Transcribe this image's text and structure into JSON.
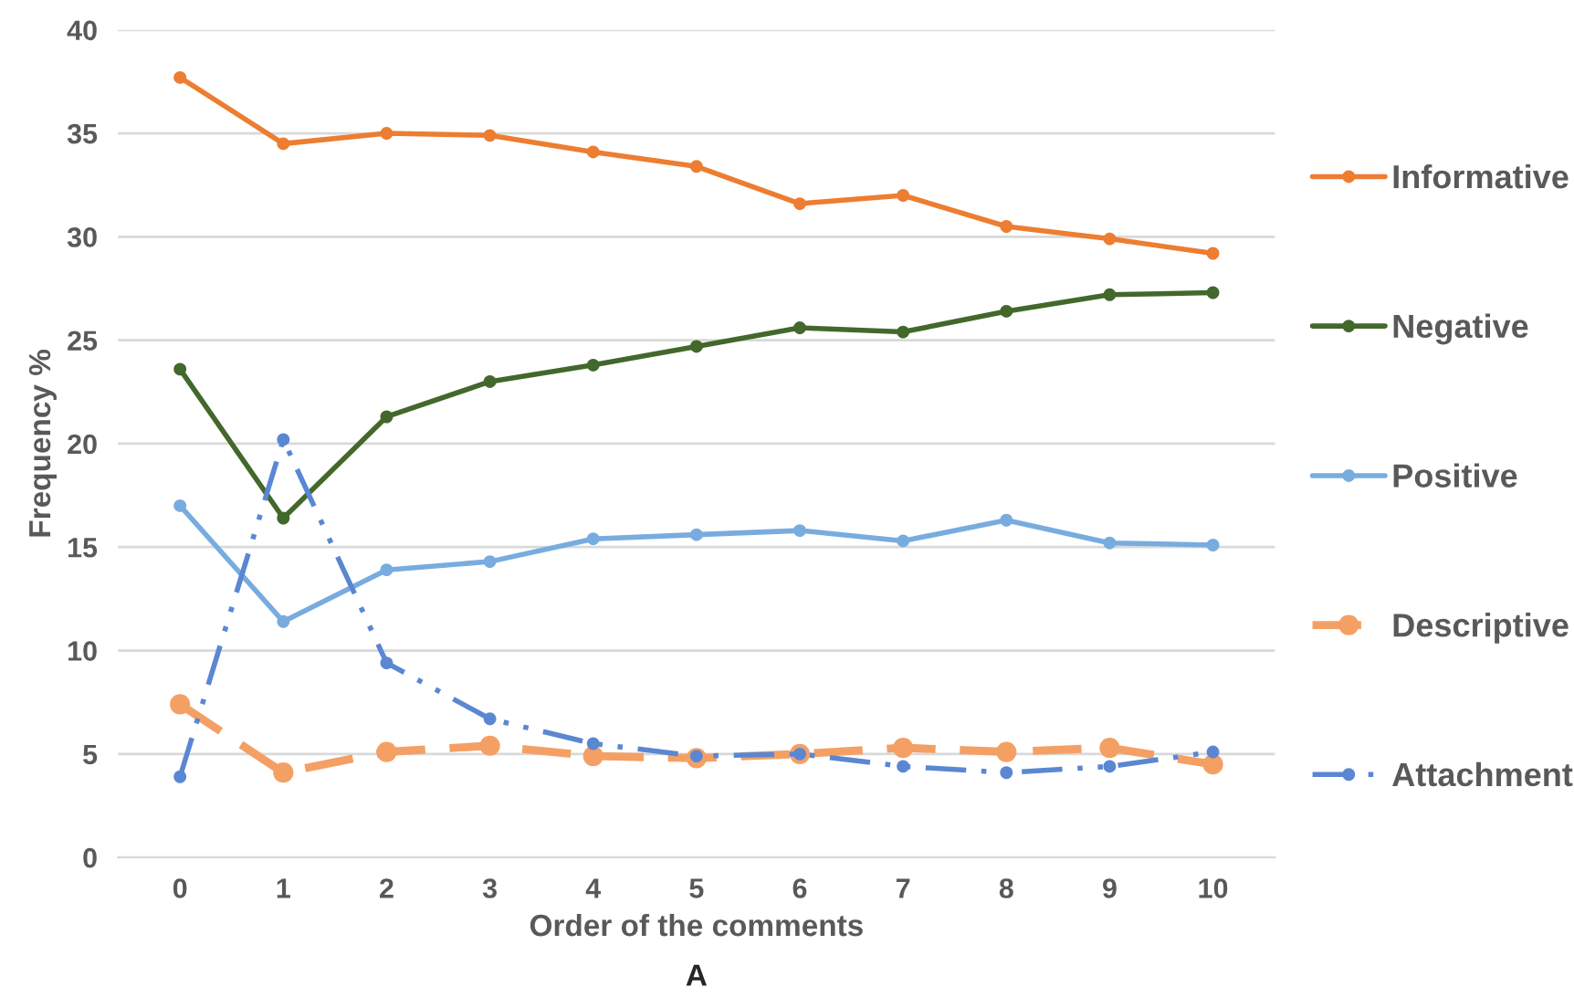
{
  "chart_data": {
    "type": "line",
    "xlabel": "Order of the comments",
    "ylabel": "Frequency %",
    "annotations": [
      "A"
    ],
    "categories": [
      "0",
      "1",
      "2",
      "3",
      "4",
      "5",
      "6",
      "7",
      "8",
      "9",
      "10"
    ],
    "series": [
      {
        "name": "Informative",
        "color": "#ed7d31",
        "line_style": "solid",
        "values": [
          37.7,
          34.5,
          35.0,
          34.9,
          34.1,
          33.4,
          31.6,
          32.0,
          30.5,
          29.9,
          29.2
        ]
      },
      {
        "name": "Negative",
        "color": "#43682b",
        "line_style": "solid",
        "values": [
          23.6,
          16.4,
          21.3,
          23.0,
          23.8,
          24.7,
          25.6,
          25.4,
          26.4,
          27.2,
          27.3
        ]
      },
      {
        "name": "Positive",
        "color": "#78acdf",
        "line_style": "solid",
        "values": [
          17.0,
          11.4,
          13.9,
          14.3,
          15.4,
          15.6,
          15.8,
          15.3,
          16.3,
          15.2,
          15.1
        ]
      },
      {
        "name": "Descriptive",
        "color": "#f4a064",
        "line_style": "dashed",
        "values": [
          7.4,
          4.1,
          5.1,
          5.4,
          4.9,
          4.8,
          5.0,
          5.3,
          5.1,
          5.3,
          4.5
        ]
      },
      {
        "name": "Attachment",
        "color": "#5b87d2",
        "line_style": "dashdot",
        "values": [
          3.9,
          20.2,
          9.4,
          6.7,
          5.5,
          4.9,
          5.0,
          4.4,
          4.1,
          4.4,
          5.1
        ]
      }
    ],
    "ylim": [
      0,
      40
    ],
    "yticks": [
      0,
      5,
      10,
      15,
      20,
      25,
      30,
      35,
      40
    ],
    "grid": "y",
    "legend": "right",
    "marker": "circle"
  }
}
